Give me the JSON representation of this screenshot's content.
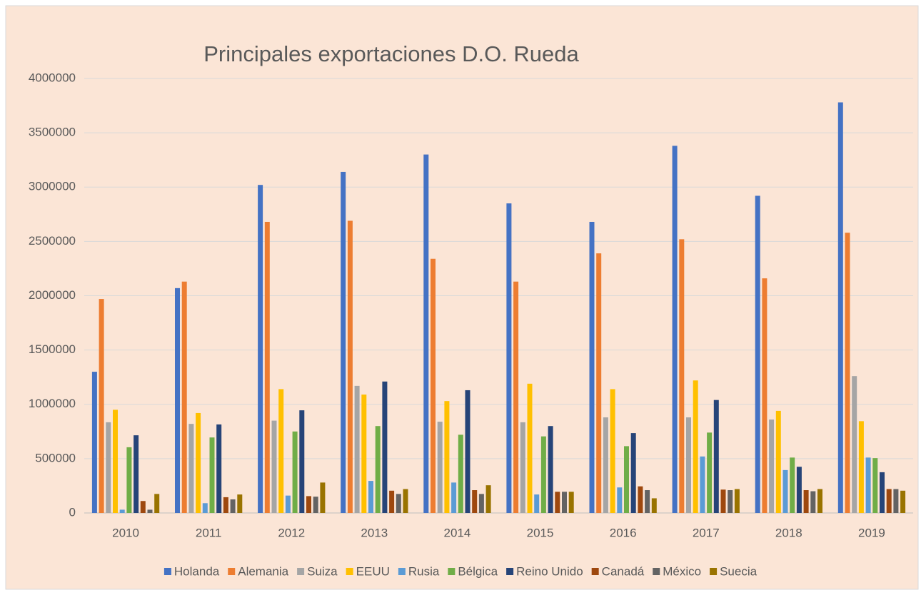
{
  "chart_data": {
    "type": "bar",
    "title": "Principales exportaciones D.O. Rueda",
    "categories": [
      "2010",
      "2011",
      "2012",
      "2013",
      "2014",
      "2015",
      "2016",
      "2017",
      "2018",
      "2019"
    ],
    "series": [
      {
        "name": "Holanda",
        "color": "#4472c4",
        "values": [
          1300000,
          2070000,
          3020000,
          3140000,
          3300000,
          2850000,
          2680000,
          3380000,
          2920000,
          3780000
        ]
      },
      {
        "name": "Alemania",
        "color": "#ed7d31",
        "values": [
          1970000,
          2130000,
          2680000,
          2690000,
          2340000,
          2130000,
          2390000,
          2520000,
          2160000,
          2580000
        ]
      },
      {
        "name": "Suiza",
        "color": "#a5a5a5",
        "values": [
          835000,
          820000,
          850000,
          1170000,
          840000,
          835000,
          880000,
          880000,
          860000,
          1260000
        ]
      },
      {
        "name": "EEUU",
        "color": "#ffc000",
        "values": [
          950000,
          920000,
          1140000,
          1090000,
          1030000,
          1190000,
          1140000,
          1220000,
          940000,
          845000
        ]
      },
      {
        "name": "Rusia",
        "color": "#5b9bd5",
        "values": [
          30000,
          90000,
          160000,
          295000,
          280000,
          170000,
          235000,
          520000,
          395000,
          510000
        ]
      },
      {
        "name": "Bélgica",
        "color": "#70ad47",
        "values": [
          605000,
          695000,
          750000,
          800000,
          720000,
          705000,
          615000,
          740000,
          510000,
          505000
        ]
      },
      {
        "name": "Reino Unido",
        "color": "#264478",
        "values": [
          715000,
          815000,
          945000,
          1210000,
          1130000,
          800000,
          735000,
          1040000,
          425000,
          375000
        ]
      },
      {
        "name": "Canadá",
        "color": "#9e480e",
        "values": [
          110000,
          145000,
          155000,
          205000,
          210000,
          195000,
          245000,
          215000,
          210000,
          220000
        ]
      },
      {
        "name": "México",
        "color": "#636363",
        "values": [
          30000,
          125000,
          150000,
          175000,
          175000,
          195000,
          210000,
          210000,
          200000,
          220000
        ]
      },
      {
        "name": "Suecia",
        "color": "#997300",
        "values": [
          175000,
          170000,
          280000,
          220000,
          255000,
          195000,
          135000,
          220000,
          220000,
          205000
        ]
      }
    ],
    "ylim": [
      0,
      4000000
    ],
    "yticks": [
      0,
      500000,
      1000000,
      1500000,
      2000000,
      2500000,
      3000000,
      3500000,
      4000000
    ],
    "grid": true,
    "legend": "bottom"
  }
}
